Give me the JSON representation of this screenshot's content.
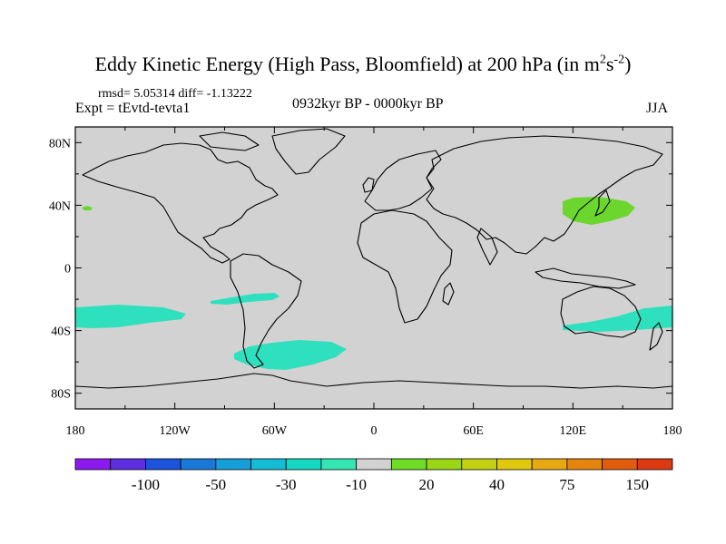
{
  "title": {
    "main": "Eddy Kinetic Energy (High Pass, Bloomfield) at 200 hPa (in m",
    "sup1": "2",
    "mid": "s",
    "sup2": "-2",
    "end": ")"
  },
  "stats": "rmsd= 5.05314 diff= -1.13222",
  "expt": "Expt = tEvtd-tevta1",
  "period": "0932kyr BP - 0000kyr BP",
  "season": "JJA",
  "lat_labels": [
    "80N",
    "40N",
    "0",
    "40S",
    "80S"
  ],
  "lat_values": [
    80,
    40,
    0,
    -40,
    -80
  ],
  "lon_labels": [
    "180",
    "120W",
    "60W",
    "0",
    "60E",
    "120E",
    "180"
  ],
  "lon_values": [
    -180,
    -120,
    -60,
    0,
    60,
    120,
    180
  ],
  "colorbar": {
    "colors": [
      "#8c1aef",
      "#5c2ee0",
      "#1c54dc",
      "#1a78d8",
      "#169ed8",
      "#14bcd6",
      "#15d8c2",
      "#33e6b2",
      "#d2d2d2",
      "#6fdc26",
      "#9ad616",
      "#c2d212",
      "#e0c80c",
      "#e8a812",
      "#e68410",
      "#e25c0e",
      "#dc3a12"
    ],
    "labels": [
      "-100",
      "-50",
      "-30",
      "-10",
      "20",
      "40",
      "75",
      "150"
    ]
  },
  "colors": {
    "land_ocean": "#d2d2d2",
    "negative_anomaly": "#2fe0be",
    "positive_anomaly": "#6ad62e"
  }
}
